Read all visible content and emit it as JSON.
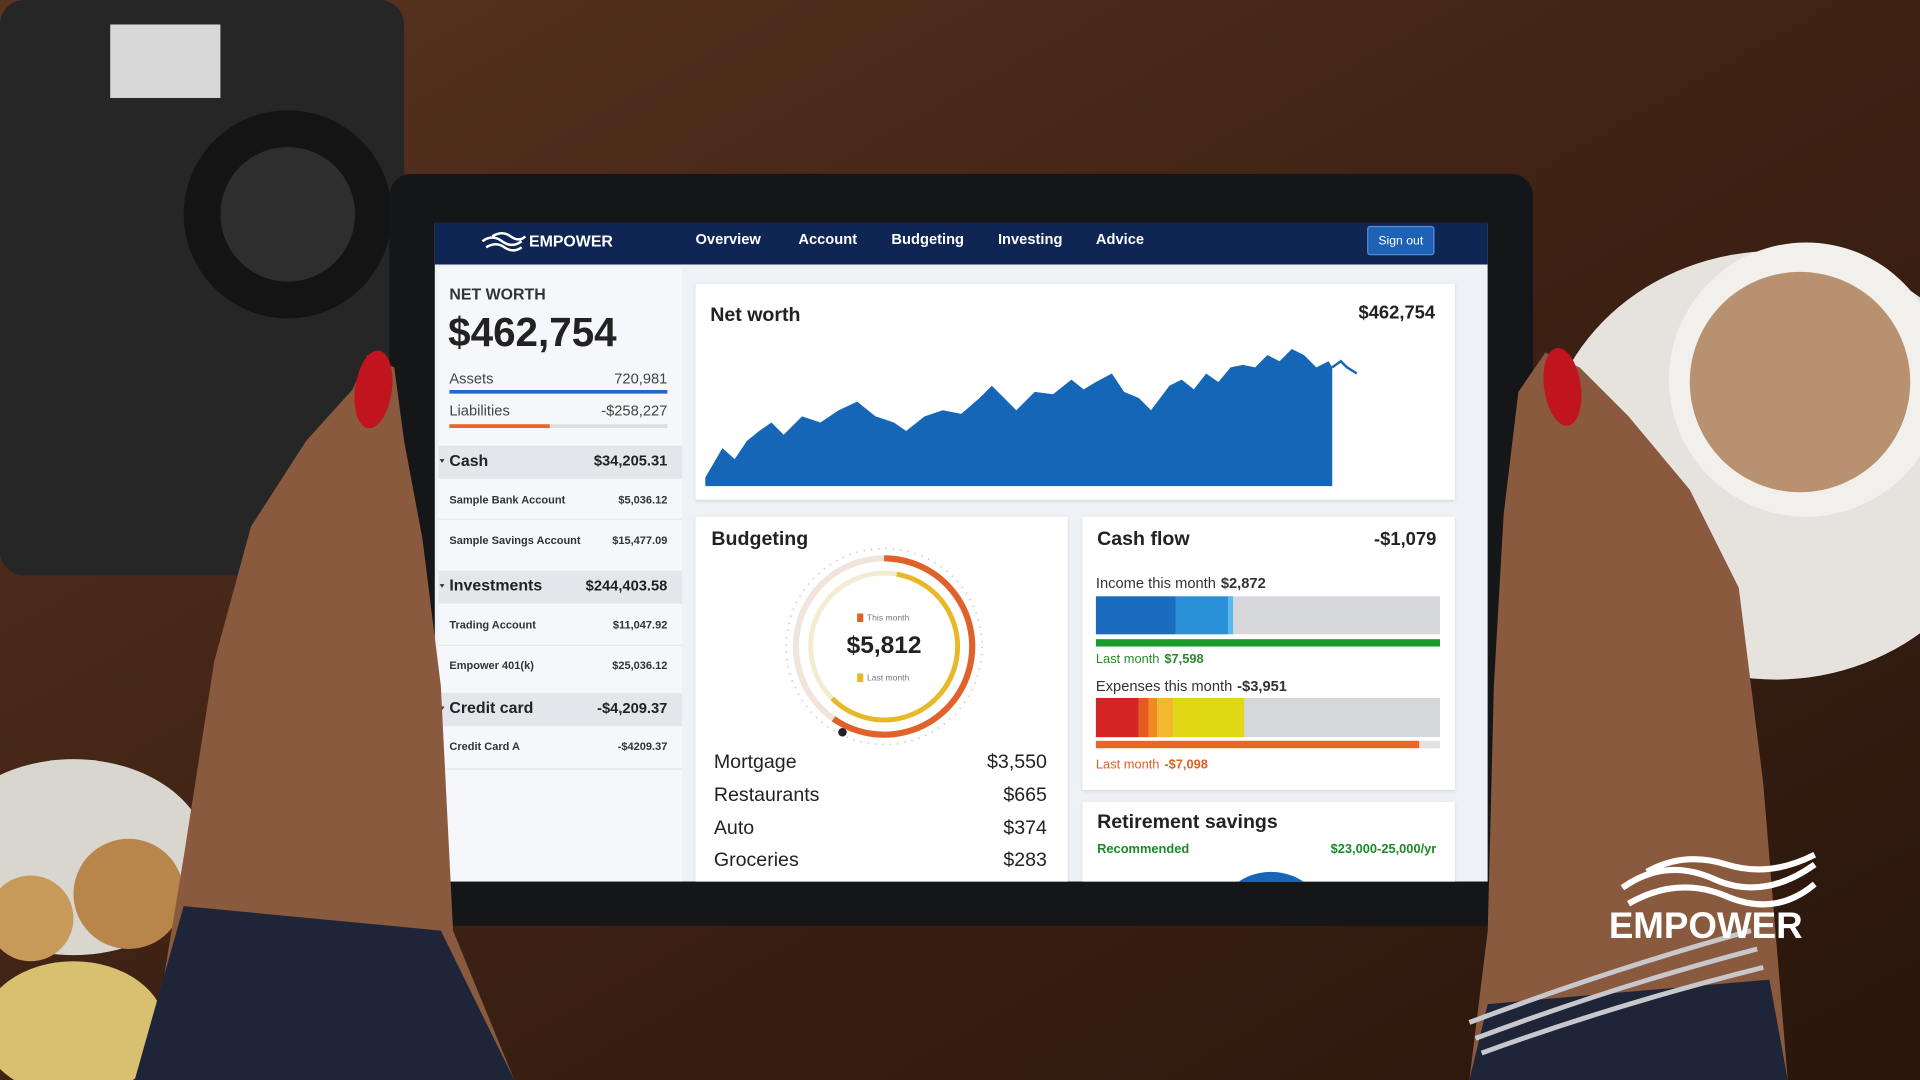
{
  "nav": {
    "logo": "EMPOWER",
    "items": [
      "Overview",
      "Account",
      "Budgeting",
      "Investing",
      "Advice"
    ],
    "sign_out": "Sign out"
  },
  "sidebar": {
    "title": "NET WORTH",
    "total": "$462,754",
    "assets": {
      "label": "Assets",
      "value": "720,981"
    },
    "liabilities": {
      "label": "Liabilities",
      "value": "-$258,227"
    },
    "groups": [
      {
        "name": "Cash",
        "total": "$34,205.31",
        "accounts": [
          {
            "name": "Sample Bank Account",
            "value": "$5,036.12"
          },
          {
            "name": "Sample Savings Account",
            "value": "$15,477.09"
          }
        ]
      },
      {
        "name": "Investments",
        "total": "$244,403.58",
        "accounts": [
          {
            "name": "Trading Account",
            "value": "$11,047.92"
          },
          {
            "name": "Empower 401(k)",
            "value": "$25,036.12"
          }
        ]
      },
      {
        "name": "Credit card",
        "total": "-$4,209.37",
        "accounts": [
          {
            "name": "Credit Card A",
            "value": "-$4209.37"
          }
        ]
      }
    ]
  },
  "net_worth": {
    "title": "Net worth",
    "value": "$462,754"
  },
  "budgeting": {
    "title": "Budgeting",
    "this_month": "This month",
    "total": "$5,812",
    "last_month": "Last month",
    "rows": [
      {
        "label": "Mortgage",
        "value": "$3,550"
      },
      {
        "label": "Restaurants",
        "value": "$665"
      },
      {
        "label": "Auto",
        "value": "$374"
      },
      {
        "label": "Groceries",
        "value": "$283"
      }
    ]
  },
  "cash_flow": {
    "title": "Cash flow",
    "value": "-$1,079",
    "income": {
      "label": "Income this month",
      "value": "$2,872",
      "last_label": "Last month",
      "last_value": "$7,598"
    },
    "expenses": {
      "label": "Expenses this month",
      "value": "-$3,951",
      "last_label": "Last month",
      "last_value": "-$7,098"
    }
  },
  "retirement": {
    "title": "Retirement savings",
    "recommended": "Recommended",
    "range": "$23,000-25,000/yr"
  },
  "brand": "EMPOWER"
}
